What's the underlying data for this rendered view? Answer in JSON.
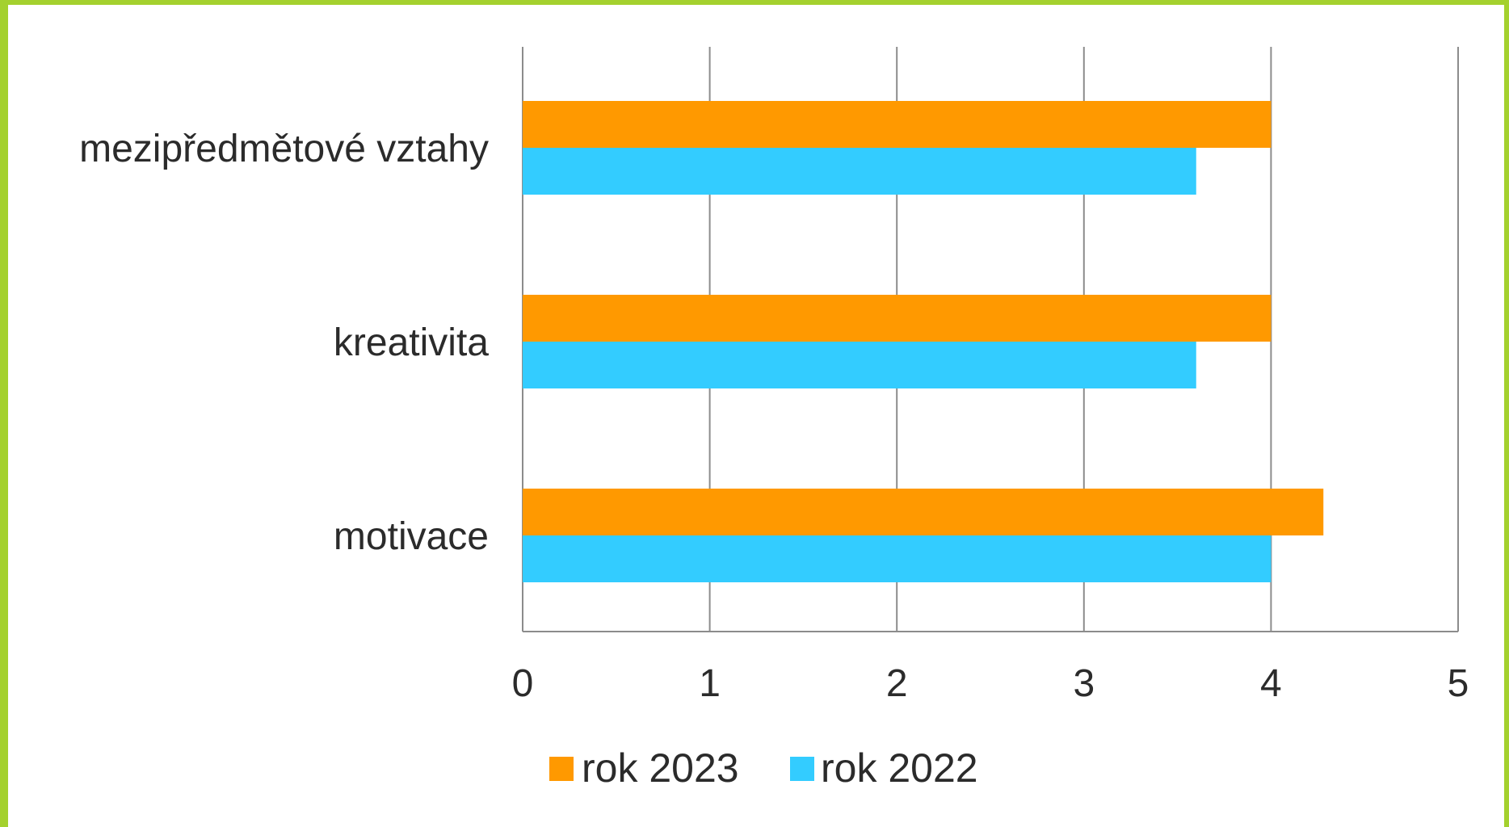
{
  "chart_data": {
    "type": "bar",
    "orientation": "horizontal",
    "categories": [
      "mezipředmětové vztahy",
      "kreativita",
      "motivace"
    ],
    "series": [
      {
        "name": "rok 2023",
        "color": "#ff9900",
        "values": [
          4.0,
          4.0,
          4.28
        ]
      },
      {
        "name": "rok 2022",
        "color": "#33ccff",
        "values": [
          3.6,
          3.6,
          4.0
        ]
      }
    ],
    "xlim": [
      0,
      5
    ],
    "xticks": [
      "0",
      "1",
      "2",
      "3",
      "4",
      "5"
    ],
    "grid": true,
    "legend_position": "bottom"
  },
  "colors": {
    "frame_border": "#a4d12e",
    "gridline": "#8c8c8c"
  }
}
